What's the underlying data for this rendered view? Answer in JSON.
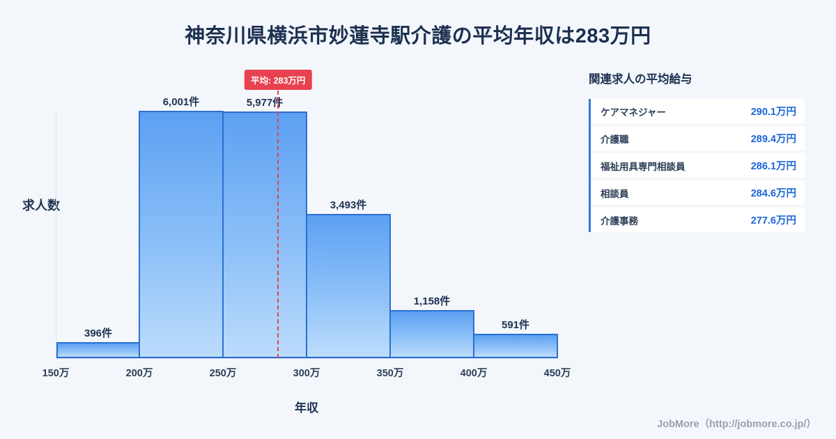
{
  "page_title": "神奈川県横浜市妙蓮寺駅介護の平均年収は283万円",
  "chart_data": {
    "type": "bar",
    "title": "神奈川県横浜市妙蓮寺駅介護の平均年収は283万円",
    "ylabel": "求人数",
    "xlabel": "年収",
    "x_ticks": [
      "150万",
      "200万",
      "250万",
      "300万",
      "350万",
      "400万",
      "450万"
    ],
    "x_range": [
      150,
      450
    ],
    "bins": [
      [
        150,
        200
      ],
      [
        200,
        250
      ],
      [
        250,
        300
      ],
      [
        300,
        350
      ],
      [
        350,
        400
      ],
      [
        400,
        450
      ]
    ],
    "values": [
      396,
      6001,
      5977,
      3493,
      1158,
      591
    ],
    "bar_labels": [
      "396件",
      "6,001件",
      "5,977件",
      "3,493件",
      "1,158件",
      "591件"
    ],
    "y_max": 6001,
    "grid": false,
    "legend": "none",
    "average": {
      "value": 283,
      "label": "平均: 283万円"
    }
  },
  "side_panel": {
    "title": "関連求人の平均給与",
    "rows": [
      {
        "label": "ケアマネジャー",
        "value": "290.1万円"
      },
      {
        "label": "介護職",
        "value": "289.4万円"
      },
      {
        "label": "福祉用具専門相談員",
        "value": "286.1万円"
      },
      {
        "label": "相談員",
        "value": "284.6万円"
      },
      {
        "label": "介護事務",
        "value": "277.6万円"
      }
    ]
  },
  "footer": {
    "credit": "JobMore（http://jobmore.co.jp/）"
  },
  "colors": {
    "background": "#f3f7fc",
    "title_text": "#1c3050",
    "bar_gradient_top": "#5ca0f2",
    "bar_gradient_bottom": "#bcdcfc",
    "bar_border": "#2a6fd2",
    "average_accent": "#e8414f",
    "table_accent": "#3577dd",
    "value_text": "#1a66d9",
    "footer_text": "#97a1ae"
  }
}
